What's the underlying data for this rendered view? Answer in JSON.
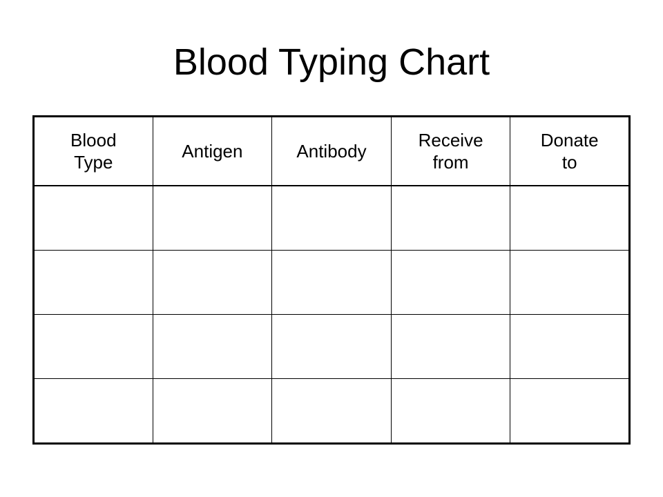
{
  "title": "Blood Typing Chart",
  "table": {
    "headers": [
      "Blood\nType",
      "Antigen",
      "Antibody",
      "Receive\nfrom",
      "Donate\nto"
    ],
    "rows": [
      [
        "",
        "",
        "",
        "",
        ""
      ],
      [
        "",
        "",
        "",
        "",
        ""
      ],
      [
        "",
        "",
        "",
        "",
        ""
      ],
      [
        "",
        "",
        "",
        "",
        ""
      ]
    ]
  }
}
